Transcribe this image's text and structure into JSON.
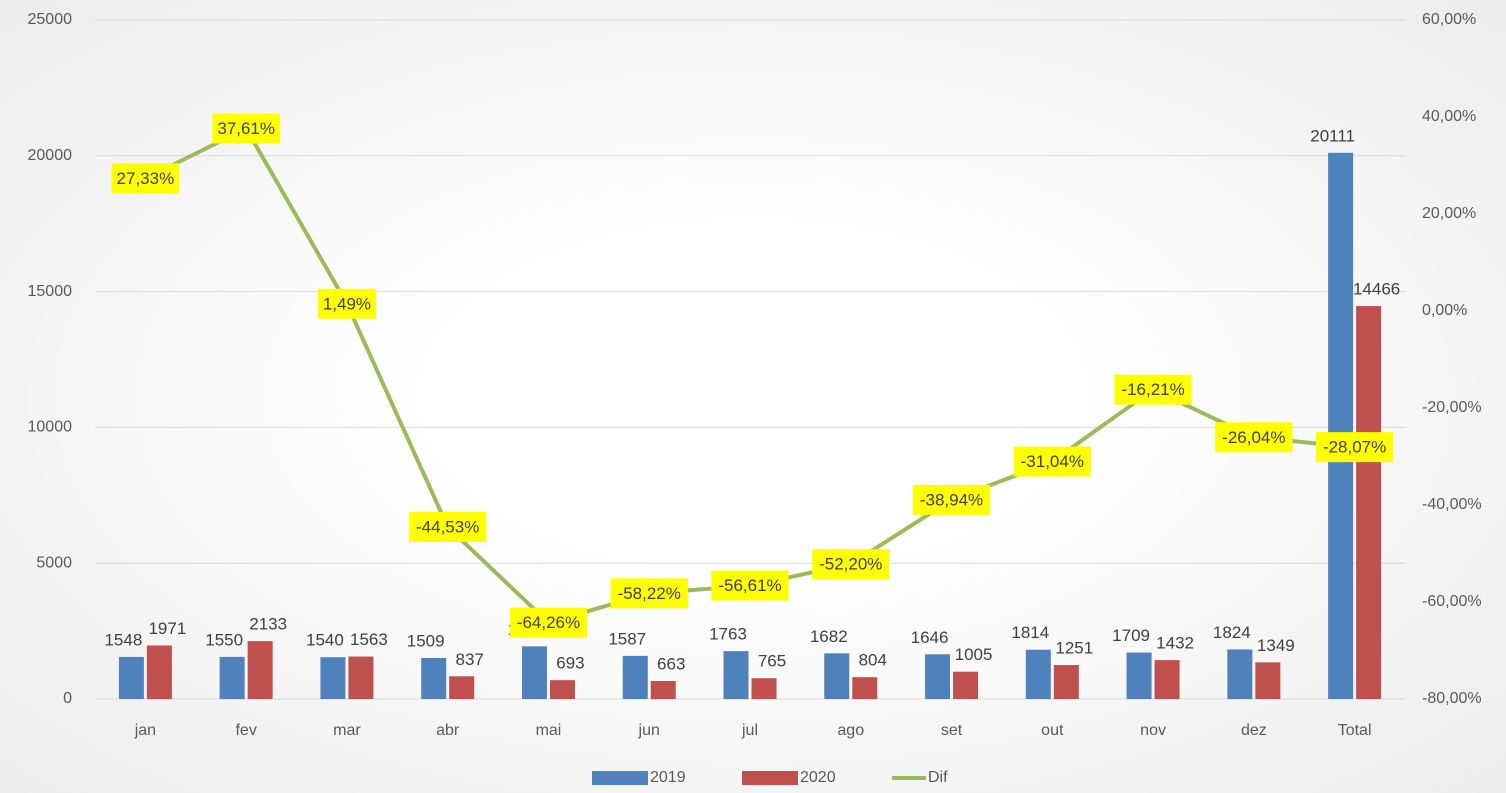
{
  "chart_data": {
    "type": "bar-line",
    "categories": [
      "jan",
      "fev",
      "mar",
      "abr",
      "mai",
      "jun",
      "jul",
      "ago",
      "set",
      "out",
      "nov",
      "dez",
      "Total"
    ],
    "series": [
      {
        "name": "2019",
        "color": "#4f81bd",
        "type": "bar",
        "values": [
          1548,
          1550,
          1540,
          1509,
          1939,
          1587,
          1763,
          1682,
          1646,
          1814,
          1709,
          1824,
          20111
        ]
      },
      {
        "name": "2020",
        "color": "#c0504d",
        "type": "bar",
        "values": [
          1971,
          2133,
          1563,
          837,
          693,
          663,
          765,
          804,
          1005,
          1251,
          1432,
          1349,
          14466
        ]
      },
      {
        "name": "Dif",
        "color": "#9bbb59",
        "type": "line",
        "axis": "y2",
        "values": [
          27.33,
          37.61,
          1.49,
          -44.53,
          -64.26,
          -58.22,
          -56.61,
          -52.2,
          -38.94,
          -31.04,
          -16.21,
          -26.04,
          -28.07
        ],
        "value_labels": [
          "27,33%",
          "37,61%",
          "1,49%",
          "-44,53%",
          "-64,26%",
          "-58,22%",
          "-56,61%",
          "-52,20%",
          "-38,94%",
          "-31,04%",
          "-16,21%",
          "-26,04%",
          "-28,07%"
        ]
      }
    ],
    "ylim": [
      0,
      25000
    ],
    "yticks": [
      0,
      5000,
      10000,
      15000,
      20000,
      25000
    ],
    "y2lim": [
      -80,
      60
    ],
    "y2ticks": [
      {
        "value": -80,
        "label": "-80,00%"
      },
      {
        "value": -60,
        "label": "-60,00%"
      },
      {
        "value": -40,
        "label": "-40,00%"
      },
      {
        "value": -20,
        "label": "-20,00%"
      },
      {
        "value": 0,
        "label": "0,00%"
      },
      {
        "value": 20,
        "label": "20,00%"
      },
      {
        "value": 40,
        "label": "40,00%"
      },
      {
        "value": 60,
        "label": "60,00%"
      }
    ],
    "grid": true,
    "legend": "bottom"
  }
}
